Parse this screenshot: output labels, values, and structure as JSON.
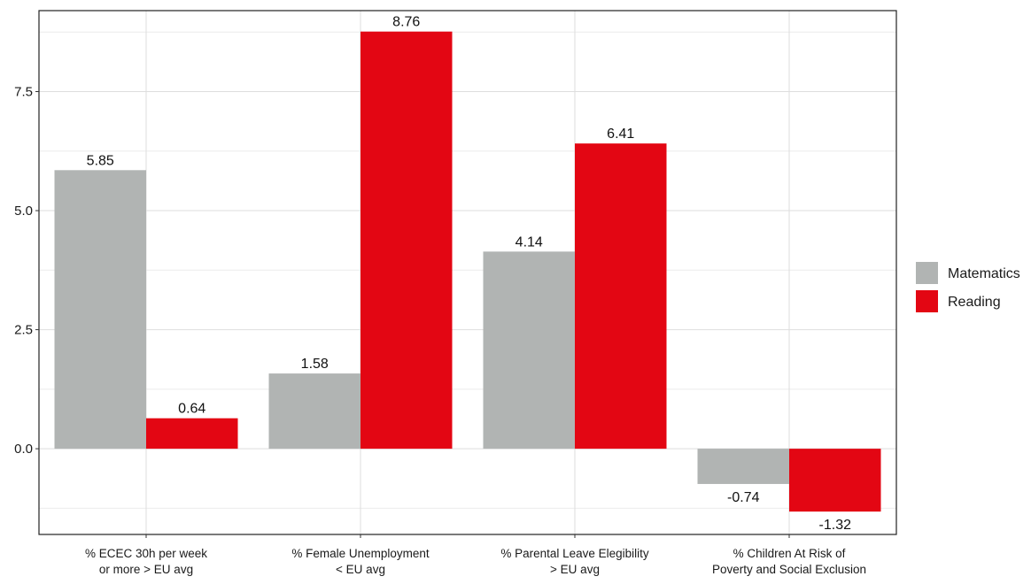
{
  "chart_data": {
    "type": "bar",
    "categories": [
      [
        "% ECEC 30h per week",
        "or more > EU avg"
      ],
      [
        "% Female Unemployment",
        "< EU avg"
      ],
      [
        "% Parental Leave Elegibility",
        "> EU avg"
      ],
      [
        "% Children At Risk of",
        "Poverty and Social Exclusion"
      ]
    ],
    "series": [
      {
        "name": "Matematics",
        "color": "#b1b4b3",
        "values": [
          5.85,
          1.58,
          4.14,
          -0.74
        ],
        "labels": [
          "5.85",
          "1.58",
          "4.14",
          "-0.74"
        ]
      },
      {
        "name": "Reading",
        "color": "#e30613",
        "values": [
          0.64,
          8.76,
          6.41,
          -1.32
        ],
        "labels": [
          "0.64",
          "8.76",
          "6.41",
          "-1.32"
        ]
      }
    ],
    "ylim": [
      -1.8,
      9.2
    ],
    "yticks": [
      0.0,
      2.5,
      5.0,
      7.5
    ],
    "ytick_labels": [
      "0.0",
      "2.5",
      "5.0",
      "7.5"
    ],
    "grid": true,
    "legend": "right",
    "title": "",
    "xlabel": "",
    "ylabel": ""
  }
}
